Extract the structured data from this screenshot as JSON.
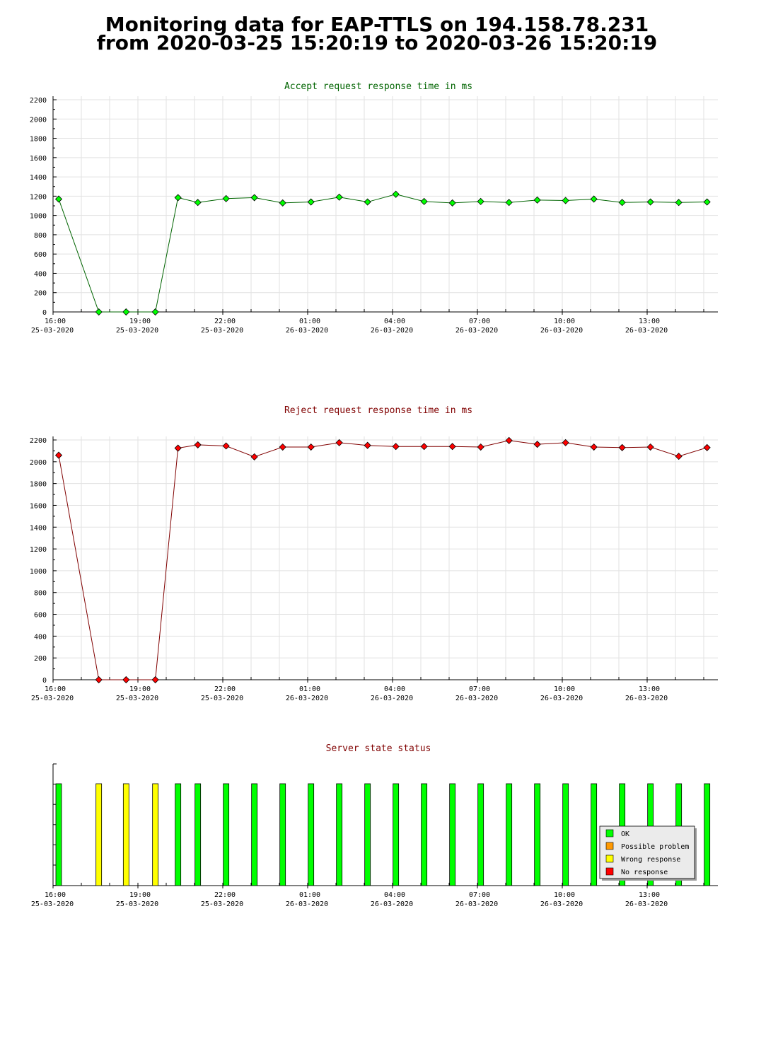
{
  "page": {
    "title_line1": "Monitoring data for EAP-TTLS on 194.158.78.231",
    "title_line2": "from 2020-03-25 15:20:19 to 2020-03-26 15:20:19"
  },
  "x_axis": {
    "ticks": [
      {
        "time": "16:00",
        "date": "25-03-2020"
      },
      {
        "time": "19:00",
        "date": "25-03-2020"
      },
      {
        "time": "22:00",
        "date": "25-03-2020"
      },
      {
        "time": "01:00",
        "date": "26-03-2020"
      },
      {
        "time": "04:00",
        "date": "26-03-2020"
      },
      {
        "time": "07:00",
        "date": "26-03-2020"
      },
      {
        "time": "10:00",
        "date": "26-03-2020"
      },
      {
        "time": "13:00",
        "date": "26-03-2020"
      }
    ]
  },
  "chart_data": [
    {
      "type": "line",
      "title": "Accept request response time in ms",
      "title_color": "#006400",
      "line_color": "#006400",
      "marker_color": "#00ff00",
      "ylim": [
        0,
        2200
      ],
      "yticks": [
        0,
        200,
        400,
        600,
        800,
        1000,
        1200,
        1400,
        1600,
        1800,
        2000,
        2200
      ],
      "x": [
        "2020-03-25 16:12",
        "2020-03-25 17:37",
        "2020-03-25 18:35",
        "2020-03-25 19:37",
        "2020-03-25 20:25",
        "2020-03-25 21:07",
        "2020-03-25 22:07",
        "2020-03-25 23:07",
        "2020-03-26 00:07",
        "2020-03-26 01:07",
        "2020-03-26 02:07",
        "2020-03-26 03:07",
        "2020-03-26 04:07",
        "2020-03-26 05:07",
        "2020-03-26 06:07",
        "2020-03-26 07:07",
        "2020-03-26 08:07",
        "2020-03-26 09:07",
        "2020-03-26 10:07",
        "2020-03-26 11:07",
        "2020-03-26 12:07",
        "2020-03-26 13:07",
        "2020-03-26 14:07",
        "2020-03-26 15:07"
      ],
      "values": [
        1170,
        0,
        0,
        0,
        1185,
        1135,
        1175,
        1185,
        1130,
        1140,
        1190,
        1140,
        1220,
        1145,
        1130,
        1145,
        1135,
        1160,
        1155,
        1170,
        1135,
        1140,
        1135,
        1140
      ]
    },
    {
      "type": "line",
      "title": "Reject request response time in ms",
      "title_color": "#800000",
      "line_color": "#800000",
      "marker_color": "#ff0000",
      "ylim": [
        0,
        2200
      ],
      "yticks": [
        0,
        200,
        400,
        600,
        800,
        1000,
        1200,
        1400,
        1600,
        1800,
        2000,
        2200
      ],
      "x": [
        "2020-03-25 16:12",
        "2020-03-25 17:37",
        "2020-03-25 18:35",
        "2020-03-25 19:37",
        "2020-03-25 20:25",
        "2020-03-25 21:07",
        "2020-03-25 22:07",
        "2020-03-25 23:07",
        "2020-03-26 00:07",
        "2020-03-26 01:07",
        "2020-03-26 02:07",
        "2020-03-26 03:07",
        "2020-03-26 04:07",
        "2020-03-26 05:07",
        "2020-03-26 06:07",
        "2020-03-26 07:07",
        "2020-03-26 08:07",
        "2020-03-26 09:07",
        "2020-03-26 10:07",
        "2020-03-26 11:07",
        "2020-03-26 12:07",
        "2020-03-26 13:07",
        "2020-03-26 14:07",
        "2020-03-26 15:07"
      ],
      "values": [
        2060,
        0,
        0,
        0,
        2125,
        2155,
        2145,
        2045,
        2135,
        2135,
        2175,
        2150,
        2140,
        2140,
        2140,
        2135,
        2195,
        2160,
        2175,
        2135,
        2130,
        2135,
        2050,
        2130
      ]
    },
    {
      "type": "bar",
      "title": "Server state status",
      "title_color": "#800000",
      "x": [
        "2020-03-25 16:12",
        "2020-03-25 17:37",
        "2020-03-25 18:35",
        "2020-03-25 19:37",
        "2020-03-25 20:25",
        "2020-03-25 21:07",
        "2020-03-25 22:07",
        "2020-03-25 23:07",
        "2020-03-26 00:07",
        "2020-03-26 01:07",
        "2020-03-26 02:07",
        "2020-03-26 03:07",
        "2020-03-26 04:07",
        "2020-03-26 05:07",
        "2020-03-26 06:07",
        "2020-03-26 07:07",
        "2020-03-26 08:07",
        "2020-03-26 09:07",
        "2020-03-26 10:07",
        "2020-03-26 11:07",
        "2020-03-26 12:07",
        "2020-03-26 13:07",
        "2020-03-26 14:07",
        "2020-03-26 15:07"
      ],
      "states": [
        "OK",
        "Wrong response",
        "Wrong response",
        "Wrong response",
        "OK",
        "OK",
        "OK",
        "OK",
        "OK",
        "OK",
        "OK",
        "OK",
        "OK",
        "OK",
        "OK",
        "OK",
        "OK",
        "OK",
        "OK",
        "OK",
        "OK",
        "OK",
        "OK",
        "OK"
      ],
      "legend_position": "bottom-right",
      "legend": [
        {
          "label": "OK",
          "color": "#00ff00"
        },
        {
          "label": "Possible problem",
          "color": "#ff9900"
        },
        {
          "label": "Wrong response",
          "color": "#ffff00"
        },
        {
          "label": "No response",
          "color": "#ff0000"
        }
      ]
    }
  ]
}
